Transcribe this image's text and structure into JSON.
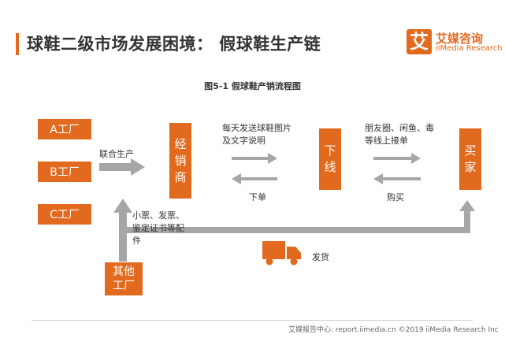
{
  "header": {
    "title": "球鞋二级市场发展困境： 假球鞋生产链",
    "logo": {
      "icon_char": "艾",
      "name_cn": "艾媒咨询",
      "name_en": "iiMedia Research"
    }
  },
  "figure": {
    "caption": "图5-1 假球鞋产销流程图",
    "factories": [
      "A工厂",
      "B工厂",
      "C工厂"
    ],
    "other_factory": "其他工厂",
    "dealer": "经销商",
    "offline": "下线",
    "buyer": "买家",
    "labels": {
      "joint_production": "联合生产",
      "send_photos": "每天发送球鞋图片及文字说明",
      "place_order": "下单",
      "post_channels": "朋友圈、闲鱼、毒等线上接单",
      "purchase": "购买",
      "accessories": "小票、发票、鉴定证书等配件",
      "ship": "发货"
    },
    "colors": {
      "accent": "#e26a1e",
      "arrow": "#a6a6a6"
    }
  },
  "footer": {
    "source": "艾媒报告中心: report.iimedia.cn ©2019 iiMedia Research Inc"
  }
}
